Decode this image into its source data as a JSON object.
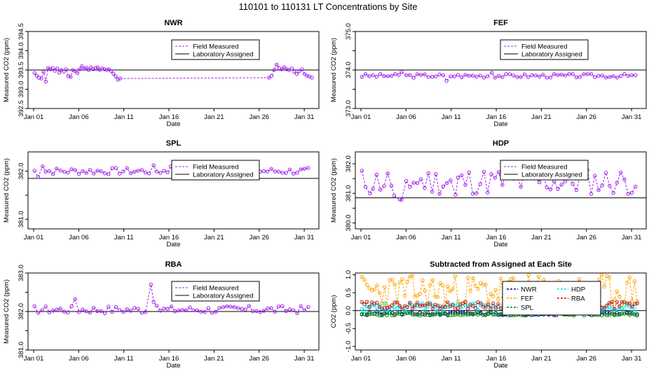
{
  "figure_title": "110101  to  110131 LT Concentrations by Site",
  "colors": {
    "field": "#a020f0",
    "lab": "#000000",
    "NWR": "#00008b",
    "FEF": "#ffa500",
    "SPL": "#008b00",
    "HDP": "#00e5ee",
    "RBA": "#b22222"
  },
  "chart_data": [
    {
      "type": "line",
      "id": "NWR",
      "title": "NWR",
      "xlabel": "Date",
      "ylabel": "Measured CO2 (ppm)",
      "xlim": [
        0,
        31
      ],
      "ylim": [
        392.5,
        394.5
      ],
      "xticks": [
        0,
        5,
        10,
        15,
        20,
        25,
        30
      ],
      "xtick_labels": [
        "Jan 01",
        "Jan 06",
        "Jan 11",
        "Jan 16",
        "Jan 21",
        "Jan 26",
        "Jan 31"
      ],
      "yticks": [
        392.5,
        393.0,
        393.5,
        394.0,
        394.5
      ],
      "ytick_labels": [
        "392.5",
        "393.0",
        "393.5",
        "394.0",
        "394.5"
      ],
      "assigned": 393.5,
      "legend": [
        "Field Measured",
        "Laboratory Assigned"
      ],
      "legend_pos": "top-center",
      "field": {
        "t0": 0.1,
        "step": 0.25,
        "values": [
          393.42,
          393.35,
          393.3,
          393.28,
          393.45,
          393.2,
          393.55,
          393.52,
          393.55,
          393.48,
          393.54,
          393.43,
          393.5,
          393.46,
          393.52,
          393.34,
          393.32,
          393.5,
          393.47,
          393.42,
          393.52,
          393.6,
          393.53,
          393.56,
          393.5,
          393.57,
          393.52,
          393.55,
          393.57,
          393.5,
          393.54,
          393.52,
          393.5,
          393.52,
          393.47,
          393.4,
          393.33,
          393.25,
          393.28
        ],
        "tail_t0": 26.1,
        "tail_values": [
          393.3,
          393.35,
          393.5,
          393.64,
          393.55,
          393.52,
          393.57,
          393.52,
          393.5,
          393.54,
          393.45,
          393.4,
          393.47,
          393.52,
          393.4,
          393.35,
          393.33,
          393.3
        ]
      }
    },
    {
      "type": "line",
      "id": "FEF",
      "title": "FEF",
      "xlabel": "Date",
      "ylabel": "Measured CO2 (ppm)",
      "xlim": [
        0,
        31
      ],
      "ylim": [
        373.0,
        375.0
      ],
      "xticks": [
        0,
        5,
        10,
        15,
        20,
        25,
        30
      ],
      "xtick_labels": [
        "Jan 01",
        "Jan 06",
        "Jan 11",
        "Jan 16",
        "Jan 21",
        "Jan 26",
        "Jan 31"
      ],
      "yticks": [
        373.0,
        373.5,
        374.0,
        374.5,
        375.0
      ],
      "ytick_labels": [
        "373.0",
        "",
        "374.0",
        "",
        "375.0"
      ],
      "assigned": 374.0,
      "legend": [
        "Field Measured",
        "Laboratory Assigned"
      ],
      "legend_pos": "top-center",
      "field": {
        "mean": 373.85,
        "amp": 0.05,
        "seed": 3,
        "special": [
          [
            4.5,
            373.95
          ],
          [
            9.5,
            373.72
          ],
          [
            14.5,
            373.93
          ]
        ]
      }
    },
    {
      "type": "line",
      "id": "SPL",
      "title": "SPL",
      "xlabel": "Date",
      "ylabel": "Measured CO2 (ppm)",
      "xlim": [
        0,
        31
      ],
      "ylim": [
        380.8,
        382.4
      ],
      "xticks": [
        0,
        5,
        10,
        15,
        20,
        25,
        30
      ],
      "xtick_labels": [
        "Jan 01",
        "Jan 06",
        "Jan 11",
        "Jan 16",
        "Jan 21",
        "Jan 26",
        "Jan 31"
      ],
      "yticks": [
        381.0,
        381.5,
        382.0
      ],
      "ytick_labels": [
        "381.0",
        "",
        "382.0"
      ],
      "assigned": 381.85,
      "legend": [
        "Field Measured",
        "Laboratory Assigned"
      ],
      "legend_pos": "top-right",
      "field": {
        "mean": 382.0,
        "amp": 0.07,
        "seed": 7,
        "special": [
          [
            0.5,
            381.88
          ],
          [
            1.0,
            382.1
          ],
          [
            13.3,
            382.12
          ],
          [
            15.2,
            382.1
          ]
        ]
      }
    },
    {
      "type": "line",
      "id": "HDP",
      "title": "HDP",
      "xlabel": "Date",
      "ylabel": "Measured CO2 (ppm)",
      "xlim": [
        0,
        31
      ],
      "ylim": [
        379.8,
        382.4
      ],
      "xticks": [
        0,
        5,
        10,
        15,
        20,
        25,
        30
      ],
      "xtick_labels": [
        "Jan 01",
        "Jan 06",
        "Jan 11",
        "Jan 16",
        "Jan 21",
        "Jan 26",
        "Jan 31"
      ],
      "yticks": [
        380.0,
        380.5,
        381.0,
        381.5,
        382.0
      ],
      "ytick_labels": [
        "380.0",
        "",
        "381.0",
        "",
        "382.0"
      ],
      "assigned": 380.85,
      "legend": [
        "Field Measured",
        "Laboratory Assigned"
      ],
      "legend_pos": "top-right",
      "field": {
        "mean": 381.4,
        "amp": 0.45,
        "seed": 11,
        "special": [
          [
            1.0,
            381.0
          ],
          [
            3.7,
            380.92
          ],
          [
            4.3,
            380.8
          ],
          [
            4.5,
            380.78
          ],
          [
            10.5,
            380.95
          ]
        ]
      }
    },
    {
      "type": "line",
      "id": "RBA",
      "title": "RBA",
      "xlabel": "Date",
      "ylabel": "Measured CO2 (ppm)",
      "xlim": [
        0,
        31
      ],
      "ylim": [
        381.0,
        383.0
      ],
      "xticks": [
        0,
        5,
        10,
        15,
        20,
        25,
        30
      ],
      "xtick_labels": [
        "Jan 01",
        "Jan 06",
        "Jan 11",
        "Jan 16",
        "Jan 21",
        "Jan 26",
        "Jan 31"
      ],
      "yticks": [
        381.0,
        381.5,
        382.0,
        382.5,
        383.0
      ],
      "ytick_labels": [
        "381.0",
        "",
        "382.0",
        "",
        "383.0"
      ],
      "assigned": 382.0,
      "legend": [
        "Field Measured",
        "Laboratory Assigned"
      ],
      "legend_pos": "top-right",
      "field": {
        "mean": 382.05,
        "amp": 0.1,
        "seed": 17,
        "special": [
          [
            13.0,
            382.7
          ],
          [
            13.3,
            382.25
          ],
          [
            4.6,
            382.32
          ]
        ]
      }
    },
    {
      "type": "line",
      "id": "DIFF",
      "title": "Subtracted from Assigned at Each Site",
      "xlabel": "Date",
      "ylabel": "CO2 (ppm)",
      "xlim": [
        0,
        31
      ],
      "ylim": [
        -1.1,
        1.05
      ],
      "xticks": [
        0,
        5,
        10,
        15,
        20,
        25,
        30
      ],
      "xtick_labels": [
        "Jan 01",
        "Jan 06",
        "Jan 11",
        "Jan 16",
        "Jan 21",
        "Jan 26",
        "Jan 31"
      ],
      "yticks": [
        -1.0,
        -0.5,
        0.0,
        0.5,
        1.0
      ],
      "ytick_labels": [
        "-1.0",
        "-0.5",
        "0.0",
        "0.5",
        "1.0"
      ],
      "assigned": 0.0,
      "legend": [
        "NWR",
        "FEF",
        "SPL",
        "HDP",
        "RBA"
      ],
      "legend_pos": "top-right",
      "series": [
        {
          "name": "NWR",
          "mean": -0.08,
          "amp": 0.05,
          "seed": 21
        },
        {
          "name": "FEF",
          "mean": 0.55,
          "amp": 0.45,
          "seed": 23
        },
        {
          "name": "SPL",
          "mean": -0.1,
          "amp": 0.04,
          "seed": 25
        },
        {
          "name": "HDP",
          "mean": 0.1,
          "amp": 0.12,
          "seed": 27
        },
        {
          "name": "RBA",
          "mean": 0.15,
          "amp": 0.1,
          "seed": 29
        }
      ]
    }
  ]
}
